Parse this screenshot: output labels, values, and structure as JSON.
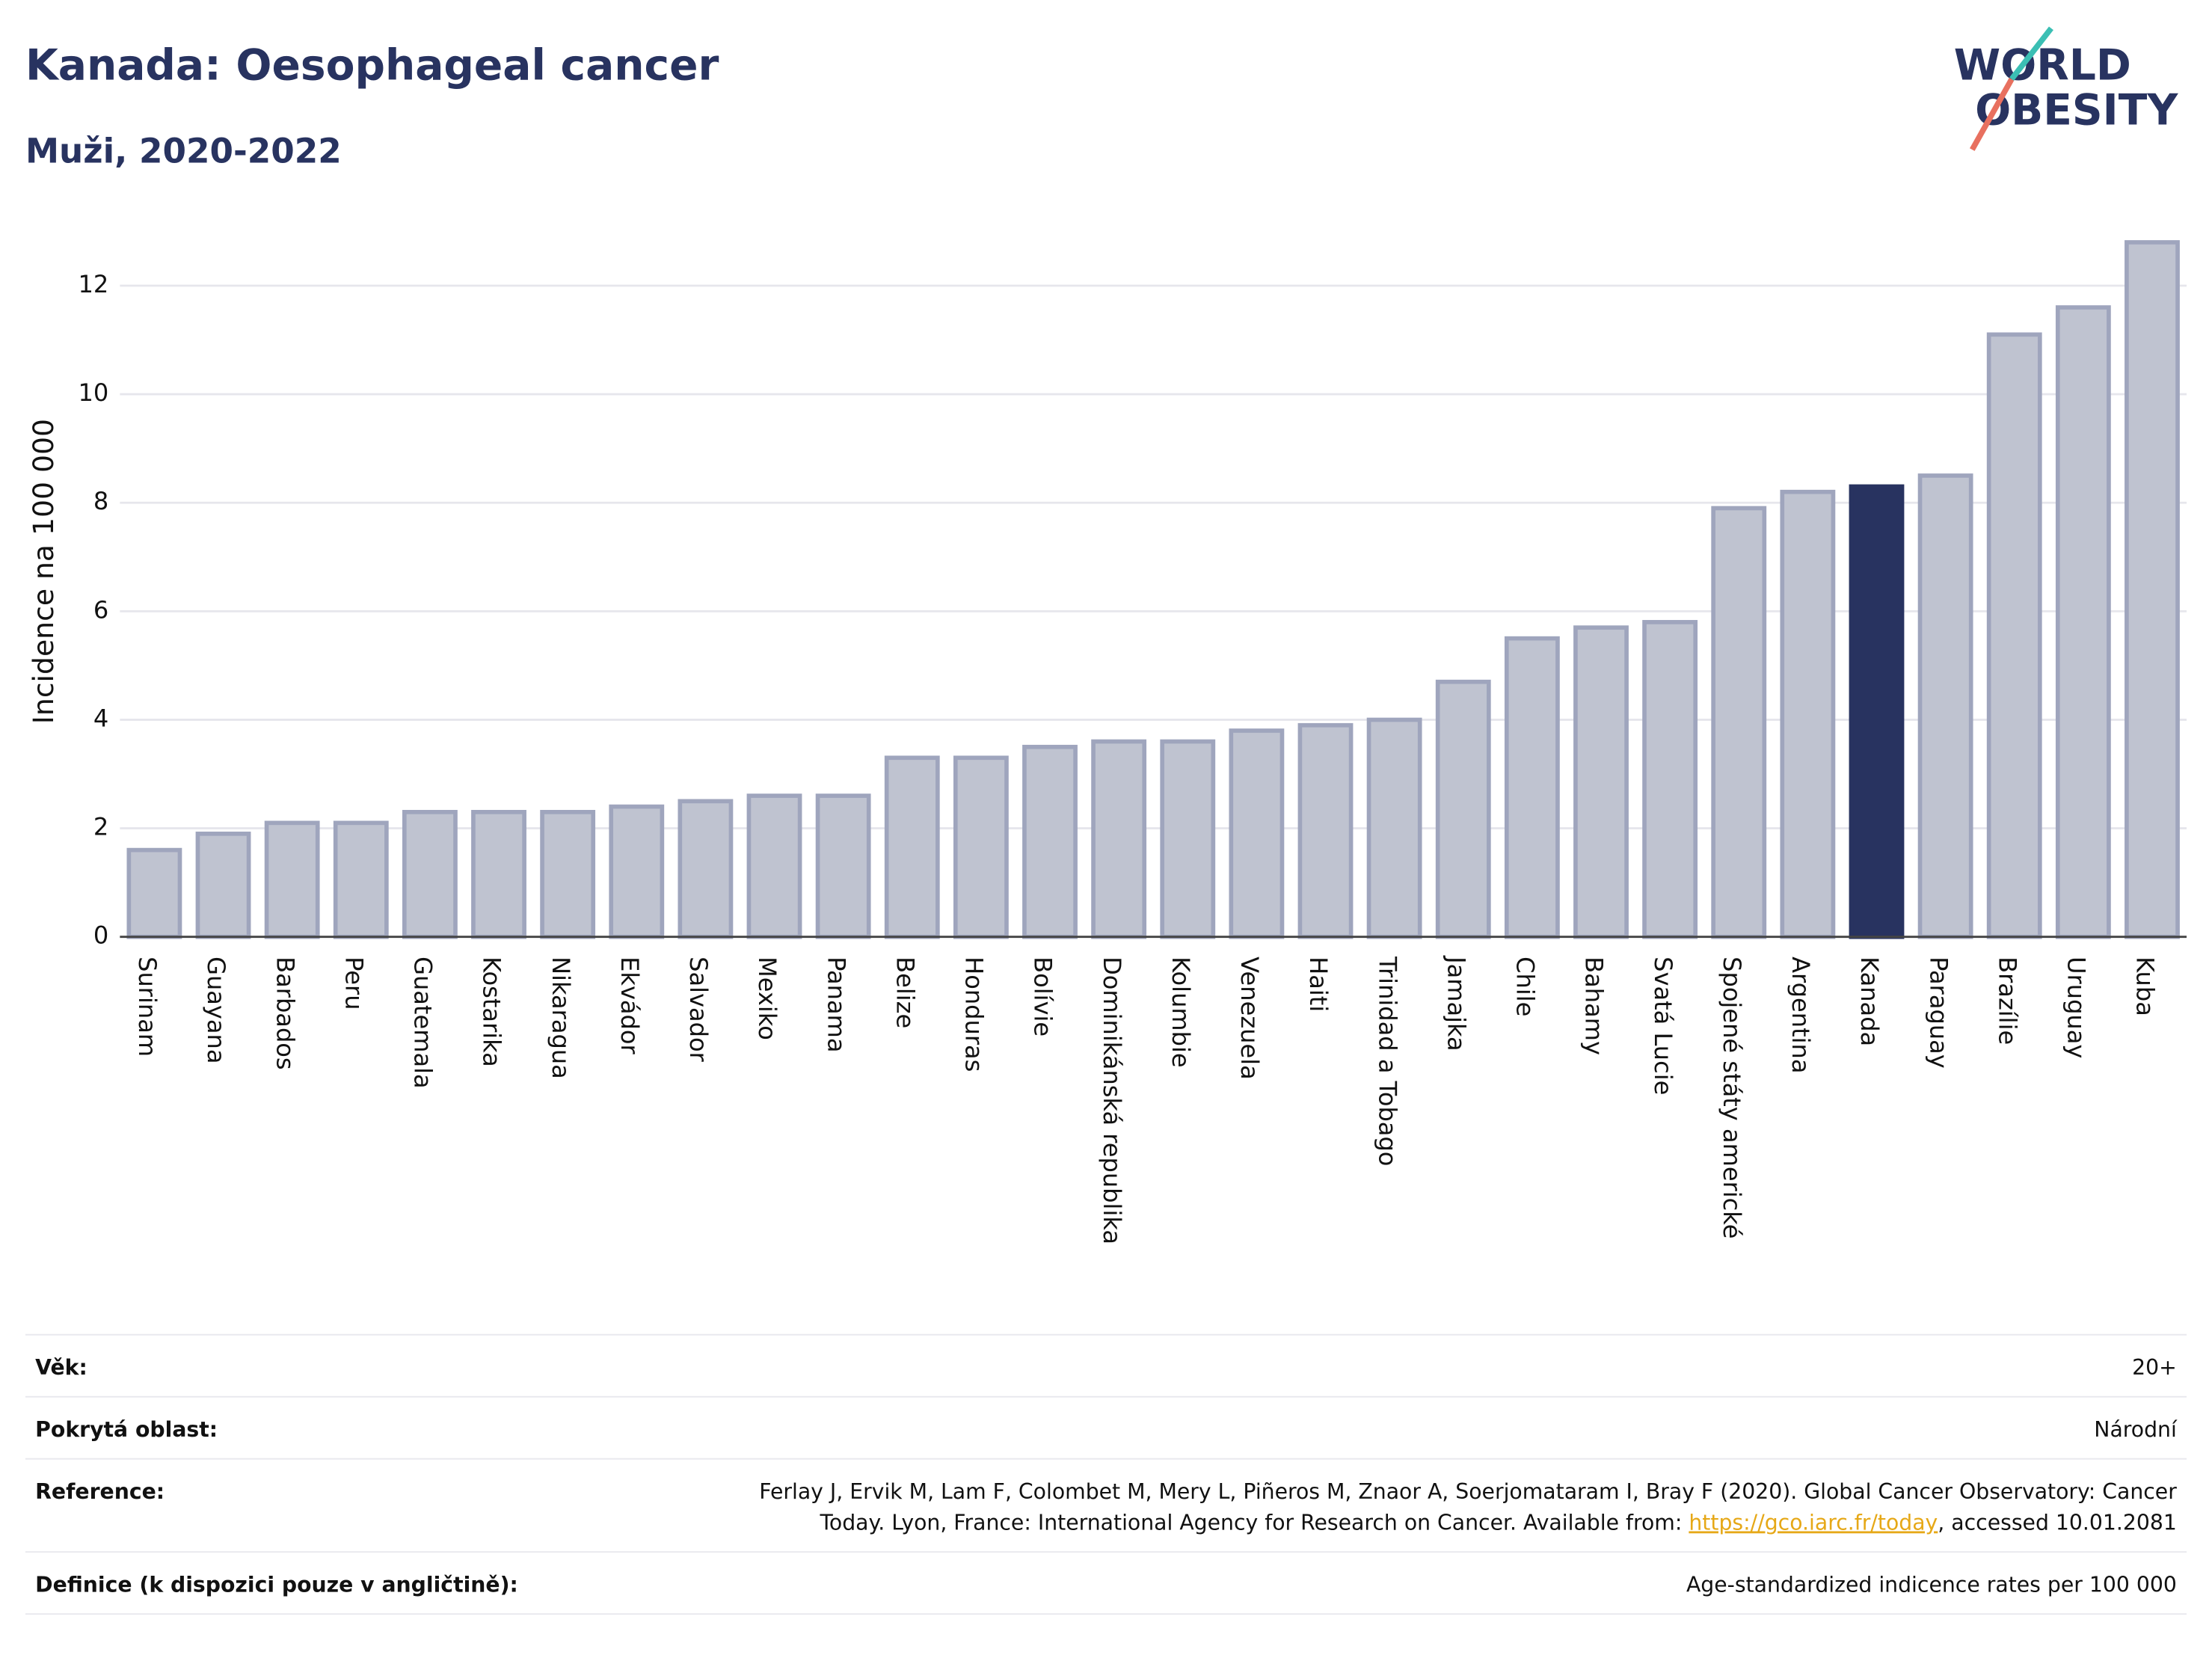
{
  "chart_data": {
    "type": "bar",
    "title": "Kanada: Oesophageal cancer",
    "subtitle": "Muži, 2020-2022",
    "y_label": "Incidence na 100 000",
    "categories": [
      "Surinam",
      "Guayana",
      "Barbados",
      "Peru",
      "Guatemala",
      "Kostarika",
      "Nikaragua",
      "Ekvádor",
      "Salvador",
      "Mexiko",
      "Panama",
      "Belize",
      "Honduras",
      "Bolívie",
      "Dominikánská republika",
      "Kolumbie",
      "Venezuela",
      "Haiti",
      "Trinidad a Tobago",
      "Jamajka",
      "Chile",
      "Bahamy",
      "Svatá Lucie",
      "Spojené státy americké",
      "Argentina",
      "Kanada",
      "Paraguay",
      "Brazílie",
      "Uruguay",
      "Kuba"
    ],
    "values": [
      1.6,
      1.9,
      2.1,
      2.1,
      2.3,
      2.3,
      2.3,
      2.4,
      2.5,
      2.6,
      2.6,
      3.3,
      3.3,
      3.5,
      3.6,
      3.6,
      3.8,
      3.9,
      4.0,
      4.7,
      5.5,
      5.7,
      5.8,
      7.9,
      8.2,
      8.3,
      8.5,
      11.1,
      11.6,
      12.8
    ],
    "colors": [
      "#bfc3d0",
      "#bfc3d0",
      "#bfc3d0",
      "#bfc3d0",
      "#bfc3d0",
      "#bfc3d0",
      "#bfc3d0",
      "#bfc3d0",
      "#bfc3d0",
      "#bfc3d0",
      "#bfc3d0",
      "#bfc3d0",
      "#bfc3d0",
      "#bfc3d0",
      "#bfc3d0",
      "#bfc3d0",
      "#bfc3d0",
      "#bfc3d0",
      "#bfc3d0",
      "#bfc3d0",
      "#bfc3d0",
      "#bfc3d0",
      "#bfc3d0",
      "#bfc3d0",
      "#bfc3d0",
      "#283360",
      "#bfc3d0",
      "#bfc3d0",
      "#bfc3d0",
      "#bfc3d0"
    ],
    "ylim": [
      0,
      13
    ],
    "yticks": [
      0,
      2,
      4,
      6,
      8,
      10,
      12
    ],
    "grid": true
  },
  "logo": {
    "line1": "WORLD",
    "line2": "OBESITY"
  },
  "footer": {
    "age_label": "Věk:",
    "age_value": "20+",
    "area_label": "Pokrytá oblast:",
    "area_value": "Národní",
    "ref_label": "Reference:",
    "ref_line1": "Ferlay J, Ervik M, Lam F, Colombet M, Mery L, Piñeros M, Znaor A, Soerjomataram I, Bray F (2020). Global Cancer Observatory: Cancer",
    "ref_line2_start": "Today. Lyon, France: International Agency for Research on Cancer. Available from: ",
    "ref_link": "https://gco.iarc.fr/today",
    "ref_line2_end": ", accessed 10.01.2081",
    "def_label": "Definice (k dispozici pouze v angličtině):",
    "def_value": "Age-standardized indicence rates per 100 000"
  }
}
